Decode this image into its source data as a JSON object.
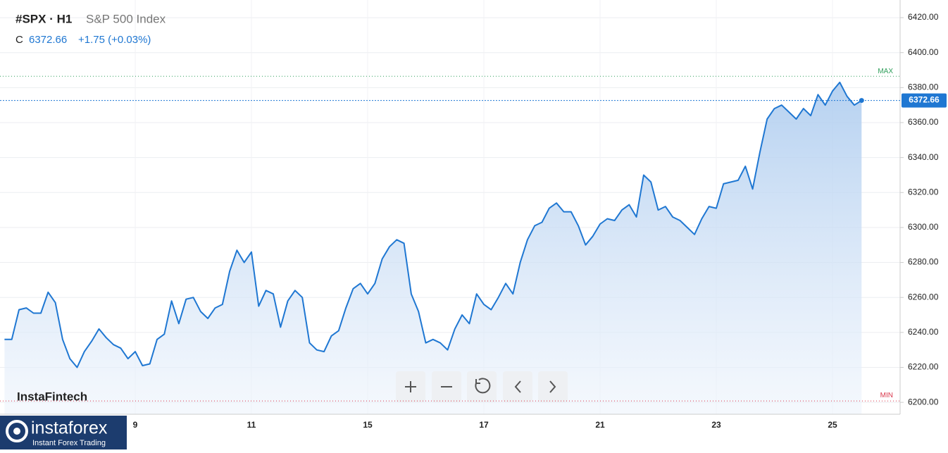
{
  "chart_data": {
    "type": "area",
    "symbol": "#SPX · H1",
    "title": "S&P 500 Index",
    "close_label": "C",
    "change": "+1.75 (+0.03%)",
    "watermark": "InstaFintech",
    "brand": "instaforex",
    "brand_tagline": "Instant Forex Trading",
    "color": "#1f77d2",
    "grid": true,
    "ylim": [
      6193.2,
      6430.1
    ],
    "yticks": [
      {
        "value": 6200,
        "label": "6200.00"
      },
      {
        "value": 6220,
        "label": "6220.00"
      },
      {
        "value": 6240,
        "label": "6240.00"
      },
      {
        "value": 6260,
        "label": "6260.00"
      },
      {
        "value": 6280,
        "label": "6280.00"
      },
      {
        "value": 6300,
        "label": "6300.00"
      },
      {
        "value": 6320,
        "label": "6320.00"
      },
      {
        "value": 6340,
        "label": "6340.00"
      },
      {
        "value": 6360,
        "label": "6360.00"
      },
      {
        "value": 6380,
        "label": "6380.00"
      },
      {
        "value": 6400,
        "label": "6400.00"
      },
      {
        "value": 6420,
        "label": "6420.00"
      }
    ],
    "max_line": {
      "label": "MAX",
      "value": 6386.5
    },
    "min_line": {
      "label": "MIN",
      "value": 6200.8
    },
    "categories": [
      null,
      null,
      null,
      null,
      null,
      null,
      null,
      null,
      null,
      null,
      null,
      null,
      null,
      null,
      null,
      null,
      null,
      null,
      "9",
      null,
      null,
      null,
      null,
      null,
      null,
      null,
      null,
      null,
      null,
      null,
      null,
      null,
      null,
      null,
      "11",
      null,
      null,
      null,
      null,
      null,
      null,
      null,
      null,
      null,
      null,
      null,
      null,
      null,
      null,
      null,
      "15",
      null,
      null,
      null,
      null,
      null,
      null,
      null,
      null,
      null,
      null,
      null,
      null,
      null,
      null,
      null,
      "17",
      null,
      null,
      null,
      null,
      null,
      null,
      null,
      null,
      null,
      null,
      null,
      null,
      null,
      null,
      null,
      "21",
      null,
      null,
      null,
      null,
      null,
      null,
      null,
      null,
      null,
      null,
      null,
      null,
      null,
      null,
      null,
      "23",
      null,
      null,
      null,
      null,
      null,
      null,
      null,
      null,
      null,
      null,
      null,
      null,
      null,
      null,
      null,
      "25",
      null,
      null,
      null,
      null
    ],
    "values": [
      6236,
      6236,
      6253,
      6254,
      6251,
      6251,
      6263,
      6257,
      6236,
      6225,
      6220,
      6229,
      6235,
      6242,
      6237,
      6233,
      6231,
      6225,
      6229,
      6221,
      6222,
      6236,
      6239,
      6258,
      6245,
      6259,
      6260,
      6252,
      6248,
      6254,
      6256,
      6275,
      6287,
      6280,
      6286,
      6255,
      6264,
      6262,
      6243,
      6258,
      6264,
      6260,
      6234,
      6230,
      6229,
      6238,
      6241,
      6254,
      6265,
      6268,
      6262,
      6268,
      6282,
      6289,
      6293,
      6291,
      6262,
      6252,
      6234,
      6236,
      6234,
      6230,
      6242,
      6250,
      6245,
      6262,
      6256,
      6253,
      6260,
      6268,
      6262,
      6280,
      6293,
      6301,
      6303,
      6311,
      6314,
      6309,
      6309,
      6301,
      6290,
      6295,
      6302,
      6305,
      6304,
      6310,
      6313,
      6306,
      6330,
      6326,
      6310,
      6312,
      6306,
      6304,
      6300,
      6296,
      6305,
      6312,
      6311,
      6325,
      6326,
      6327,
      6335,
      6322,
      6343,
      6362,
      6368,
      6370,
      6366,
      6362,
      6368,
      6364,
      6376,
      6370,
      6378,
      6383,
      6375,
      6370,
      6372.66
    ]
  }
}
